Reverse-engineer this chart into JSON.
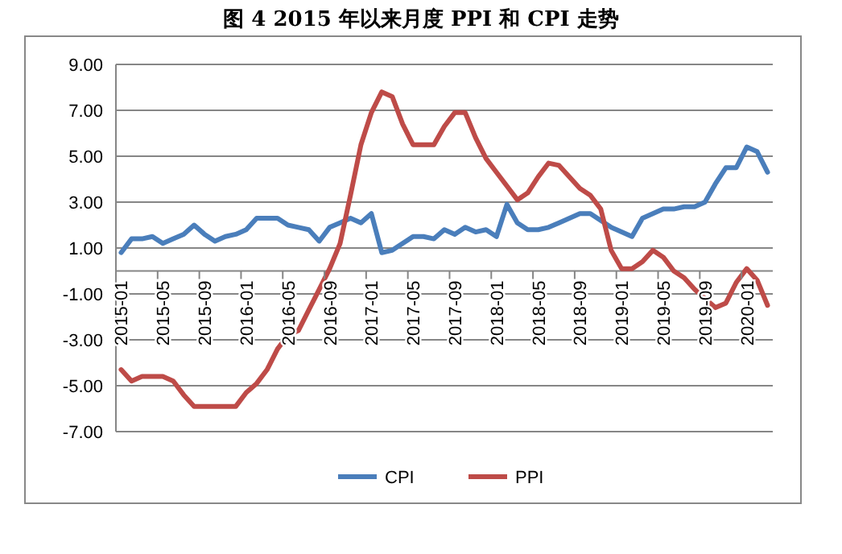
{
  "chart_data": {
    "type": "line",
    "title": "图 4   2015 年以来月度 PPI 和 CPI 走势",
    "categories": [
      "2015-01",
      null,
      null,
      null,
      "2015-05",
      null,
      null,
      null,
      "2015-09",
      null,
      null,
      null,
      "2016-01",
      null,
      null,
      null,
      "2016-05",
      null,
      null,
      null,
      "2016-09",
      null,
      null,
      null,
      "2017-01",
      null,
      null,
      null,
      "2017-05",
      null,
      null,
      null,
      "2017-09",
      null,
      null,
      null,
      "2018-01",
      null,
      null,
      null,
      "2018-05",
      null,
      null,
      null,
      "2018-09",
      null,
      null,
      null,
      "2019-01",
      null,
      null,
      null,
      "2019-05",
      null,
      null,
      null,
      "2019-09",
      null,
      null,
      null,
      "2020-01",
      null,
      null
    ],
    "series": [
      {
        "name": "CPI",
        "color": "#4a7ebb",
        "values": [
          0.8,
          1.4,
          1.4,
          1.5,
          1.2,
          1.4,
          1.6,
          2.0,
          1.6,
          1.3,
          1.5,
          1.6,
          1.8,
          2.3,
          2.3,
          2.3,
          2.0,
          1.9,
          1.8,
          1.3,
          1.9,
          2.1,
          2.3,
          2.1,
          2.5,
          0.8,
          0.9,
          1.2,
          1.5,
          1.5,
          1.4,
          1.8,
          1.6,
          1.9,
          1.7,
          1.8,
          1.5,
          2.9,
          2.1,
          1.8,
          1.8,
          1.9,
          2.1,
          2.3,
          2.5,
          2.5,
          2.2,
          1.9,
          1.7,
          1.5,
          2.3,
          2.5,
          2.7,
          2.7,
          2.8,
          2.8,
          3.0,
          3.8,
          4.5,
          4.5,
          5.4,
          5.2,
          4.3
        ]
      },
      {
        "name": "PPI",
        "color": "#be4b48",
        "values": [
          -4.3,
          -4.8,
          -4.6,
          -4.6,
          -4.6,
          -4.8,
          -5.4,
          -5.9,
          -5.9,
          -5.9,
          -5.9,
          -5.9,
          -5.3,
          -4.9,
          -4.3,
          -3.4,
          -2.8,
          -2.6,
          -1.7,
          -0.8,
          0.1,
          1.2,
          3.3,
          5.5,
          6.9,
          7.8,
          7.6,
          6.4,
          5.5,
          5.5,
          5.5,
          6.3,
          6.9,
          6.9,
          5.8,
          4.9,
          4.3,
          3.7,
          3.1,
          3.4,
          4.1,
          4.7,
          4.6,
          4.1,
          3.6,
          3.3,
          2.7,
          0.9,
          0.1,
          0.1,
          0.4,
          0.9,
          0.6,
          0.0,
          -0.3,
          -0.8,
          -1.2,
          -1.6,
          -1.4,
          -0.5,
          0.1,
          -0.4,
          -1.5
        ]
      }
    ],
    "ylim": [
      -7,
      9
    ],
    "yticks": [
      {
        "value": -7,
        "label": "-7.00"
      },
      {
        "value": -5,
        "label": "-5.00"
      },
      {
        "value": -3,
        "label": "-3.00"
      },
      {
        "value": -1,
        "label": "-1.00"
      },
      {
        "value": 1,
        "label": "1.00"
      },
      {
        "value": 3,
        "label": "3.00"
      },
      {
        "value": 5,
        "label": "5.00"
      },
      {
        "value": 7,
        "label": "7.00"
      },
      {
        "value": 9,
        "label": "9.00"
      }
    ],
    "grid": "y",
    "legend": "bottom",
    "line_style": "solid",
    "marker": "none"
  }
}
